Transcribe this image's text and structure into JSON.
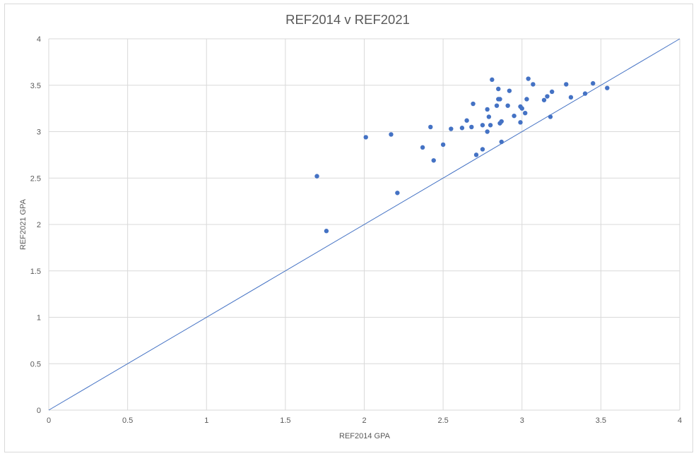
{
  "chart_data": {
    "type": "scatter",
    "title": "REF2014 v REF2021",
    "xlabel": "REF2014 GPA",
    "ylabel": "REF2021 GPA",
    "xlim": [
      0,
      4
    ],
    "ylim": [
      0,
      4
    ],
    "x_ticks": [
      "0",
      "0.5",
      "1",
      "1.5",
      "2",
      "2.5",
      "3",
      "3.5",
      "4"
    ],
    "y_ticks": [
      "0",
      "0.5",
      "1",
      "1.5",
      "2",
      "2.5",
      "3",
      "3.5",
      "4"
    ],
    "grid": true,
    "legend": "none",
    "marker_color": "#4472c4",
    "line_color": "#4472c4",
    "reference_line": {
      "from": [
        0,
        0
      ],
      "to": [
        4,
        4
      ]
    },
    "series": [
      {
        "x": [
          1.7,
          1.76,
          2.01,
          2.17,
          2.21,
          2.37,
          2.42,
          2.44,
          2.5,
          2.55,
          2.62,
          2.65,
          2.68,
          2.69,
          2.71,
          2.75,
          2.75,
          2.78,
          2.78,
          2.79,
          2.8,
          2.81,
          2.84,
          2.85,
          2.85,
          2.86,
          2.86,
          2.87,
          2.87,
          2.91,
          2.92,
          2.95,
          2.99,
          2.99,
          3.0,
          3.02,
          3.03,
          3.04,
          3.07,
          3.14,
          3.16,
          3.18,
          3.19,
          3.28,
          3.31,
          3.4,
          3.45,
          3.54
        ],
        "y": [
          2.52,
          1.93,
          2.94,
          2.97,
          2.34,
          2.83,
          3.05,
          2.69,
          2.86,
          3.03,
          3.04,
          3.12,
          3.05,
          3.3,
          2.75,
          2.81,
          3.07,
          3.24,
          3.0,
          3.16,
          3.07,
          3.56,
          3.28,
          3.46,
          3.35,
          3.35,
          3.09,
          3.11,
          2.89,
          3.28,
          3.44,
          3.17,
          3.27,
          3.1,
          3.25,
          3.2,
          3.35,
          3.57,
          3.51,
          3.34,
          3.38,
          3.16,
          3.43,
          3.51,
          3.37,
          3.41,
          3.52,
          3.47
        ]
      }
    ]
  }
}
